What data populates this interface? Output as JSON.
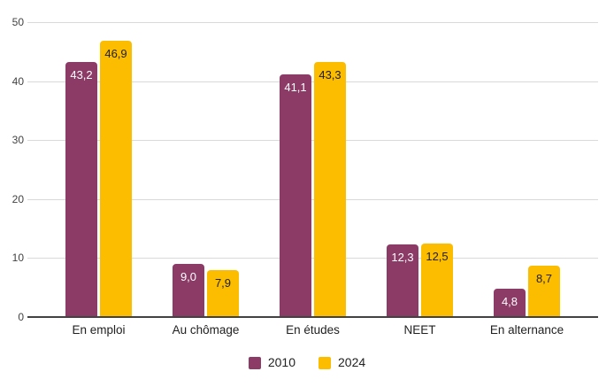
{
  "chart_data": {
    "type": "bar",
    "title": "",
    "categories": [
      "En emploi",
      "Au chômage",
      "En études",
      "NEET",
      "En alternance"
    ],
    "series": [
      {
        "name": "2010",
        "color": "#8C3A66",
        "label_color": "#ffffff",
        "values": [
          43.2,
          9.0,
          41.1,
          12.3,
          4.8
        ],
        "value_labels": [
          "43,2",
          "9,0",
          "41,1",
          "12,3",
          "4,8"
        ]
      },
      {
        "name": "2024",
        "color": "#FCBD01",
        "label_color": "#212121",
        "values": [
          46.9,
          7.9,
          43.3,
          12.5,
          8.7
        ],
        "value_labels": [
          "46,9",
          "7,9",
          "43,3",
          "12,5",
          "8,7"
        ]
      }
    ],
    "ylim": [
      0,
      50
    ],
    "yticks": [
      0,
      10,
      20,
      30,
      40,
      50
    ],
    "ytick_labels": [
      "0",
      "10",
      "20",
      "30",
      "40",
      "50"
    ],
    "grid": "horizontal",
    "legend_position": "bottom-center",
    "colors": {
      "background": "#ffffff",
      "gridline": "#d9d9d9",
      "axis_line": "#424242",
      "tick_text": "#424242",
      "category_text": "#212121"
    }
  }
}
